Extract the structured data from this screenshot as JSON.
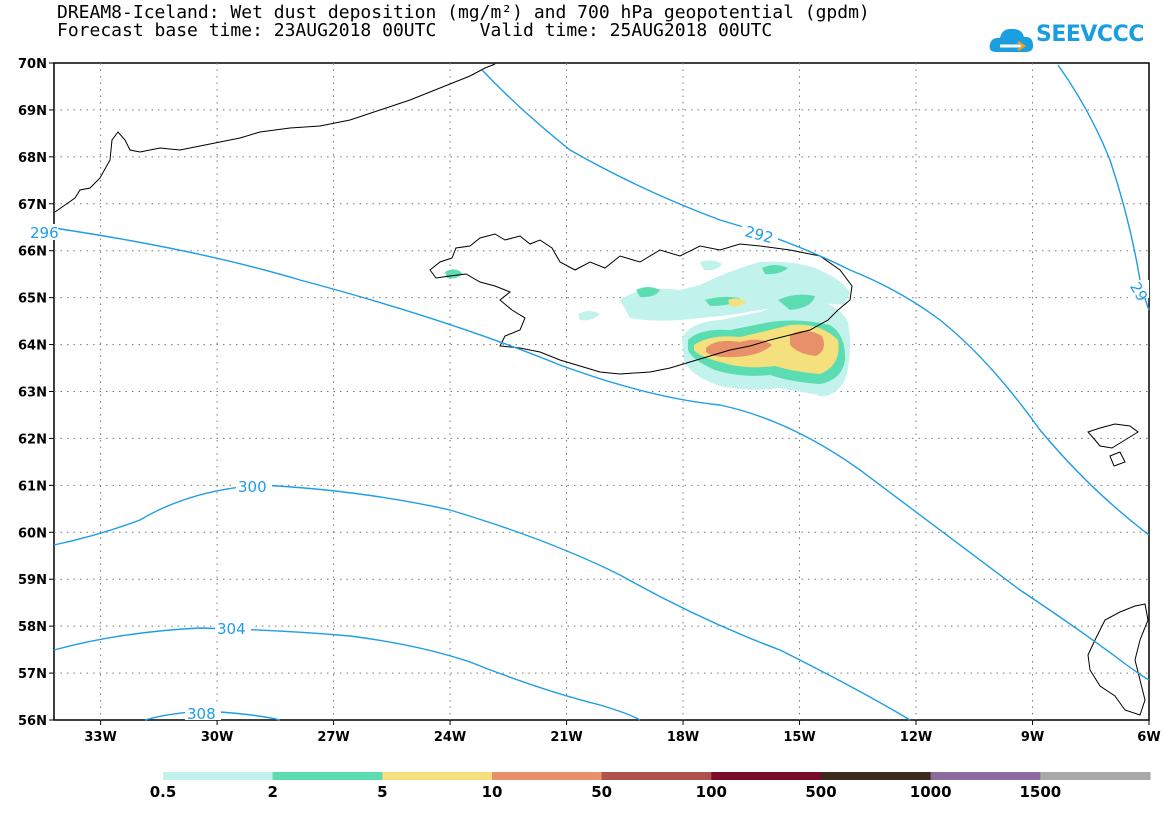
{
  "title": {
    "line1": "DREAM8-Iceland: Wet dust deposition (mg/m²) and 700 hPa geopotential (gpdm)",
    "line2": "Forecast base time: 23AUG2018 00UTC    Valid time: 25AUG2018 00UTC"
  },
  "logo": {
    "text": "SEEVCCC",
    "icon": "cloud-icon"
  },
  "axes": {
    "lat_labels": [
      "70N",
      "69N",
      "68N",
      "67N",
      "66N",
      "65N",
      "64N",
      "63N",
      "62N",
      "61N",
      "60N",
      "59N",
      "58N",
      "57N",
      "56N"
    ],
    "lon_labels": [
      "33W",
      "30W",
      "27W",
      "24W",
      "21W",
      "18W",
      "15W",
      "12W",
      "9W",
      "6W"
    ],
    "lat_range": [
      56,
      70
    ],
    "lon_range": [
      -34.2,
      -6
    ],
    "grid": "dotted"
  },
  "contours": {
    "color": "#1e9de6",
    "labels": [
      "296",
      "292",
      "29",
      "300",
      "304",
      "308"
    ]
  },
  "legend": {
    "labels": [
      "0.5",
      "2",
      "5",
      "10",
      "50",
      "100",
      "500",
      "1000",
      "1500"
    ],
    "colors": [
      "#c2f2ec",
      "#5bdcb1",
      "#f4e17d",
      "#e8906a",
      "#b0524a",
      "#7a0b2a",
      "#3c2a1f",
      "#8c6c9c",
      "#a8a8a8"
    ]
  },
  "deposition_colors": {
    "light": "#c2f2ec",
    "green": "#5bdcb1",
    "yellow": "#f4e17d",
    "orange": "#e8906a"
  }
}
